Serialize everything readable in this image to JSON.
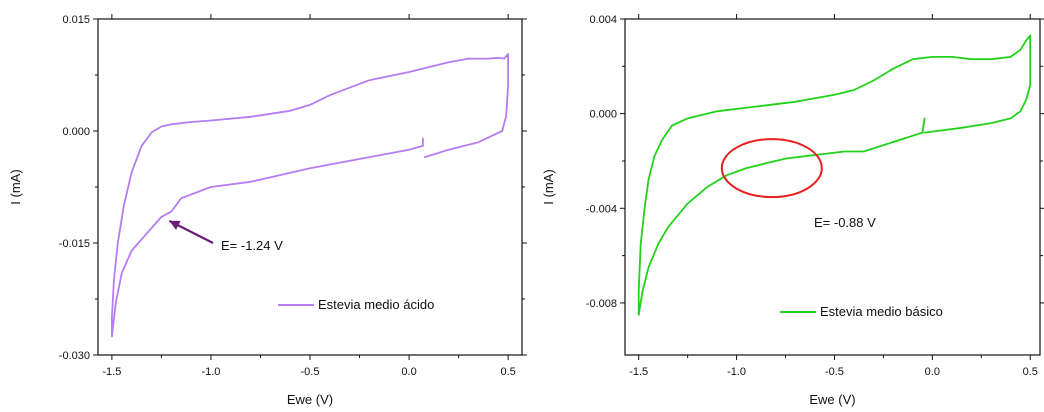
{
  "chart_data": [
    {
      "type": "line",
      "xlabel": "Ewe (V)",
      "ylabel": "I (mA)",
      "xlim": [
        -1.57,
        0.57
      ],
      "ylim": [
        -0.03,
        0.015
      ],
      "xticks": [
        -1.5,
        -1.0,
        -0.5,
        0.0,
        0.5
      ],
      "xtick_labels": [
        "-1.5",
        "-1.0",
        "-0.5",
        "0.0",
        "0.5"
      ],
      "yticks": [
        0.015,
        0.0,
        -0.015,
        -0.03
      ],
      "ytick_labels": [
        "0.015",
        "0.000",
        "-0.015",
        "-0.030"
      ],
      "legend_position": "bottom-right",
      "colors": {
        "series": "#b57cf5",
        "arrow": "#6b1b7a"
      },
      "series": [
        {
          "name": "Estevia medio ácido",
          "x": [
            0.07,
            0.07,
            0.0,
            -0.2,
            -0.5,
            -0.8,
            -1.0,
            -1.15,
            -1.2,
            -1.25,
            -1.3,
            -1.35,
            -1.4,
            -1.45,
            -1.48,
            -1.5,
            -1.5,
            -1.49,
            -1.47,
            -1.44,
            -1.4,
            -1.35,
            -1.3,
            -1.25,
            -1.2,
            -1.1,
            -1.0,
            -0.8,
            -0.6,
            -0.5,
            -0.4,
            -0.2,
            0.0,
            0.2,
            0.3,
            0.4,
            0.45,
            0.48,
            0.5,
            0.5,
            0.49,
            0.47,
            0.43,
            0.35,
            0.2,
            0.08
          ],
          "y": [
            -0.001,
            -0.002,
            -0.0025,
            -0.0035,
            -0.005,
            -0.0068,
            -0.0075,
            -0.009,
            -0.0108,
            -0.0115,
            -0.013,
            -0.0145,
            -0.016,
            -0.019,
            -0.023,
            -0.0275,
            -0.025,
            -0.02,
            -0.015,
            -0.01,
            -0.0055,
            -0.002,
            -0.0002,
            0.0006,
            0.0009,
            0.0012,
            0.0014,
            0.0019,
            0.0027,
            0.0035,
            0.0048,
            0.0068,
            0.0079,
            0.0092,
            0.0097,
            0.0097,
            0.0098,
            0.0097,
            0.0103,
            0.006,
            0.002,
            0.0,
            -0.0005,
            -0.0015,
            -0.0025,
            -0.0035
          ]
        }
      ],
      "annotation": {
        "text": "E= -1.24 V",
        "target_x": -1.24,
        "target_y": -0.0115
      }
    },
    {
      "type": "line",
      "xlabel": "Ewe (V)",
      "ylabel": "I (mA)",
      "xlim": [
        -1.57,
        0.55
      ],
      "ylim": [
        -0.0102,
        0.004
      ],
      "xticks": [
        -1.5,
        -1.0,
        -0.5,
        0.0,
        0.5
      ],
      "xtick_labels": [
        "-1.5",
        "-1.0",
        "-0.5",
        "0.0",
        "0.5"
      ],
      "yticks": [
        0.004,
        0.0,
        -0.004,
        -0.008
      ],
      "ytick_labels": [
        "0.004",
        "0.000",
        "-0.004",
        "-0.008"
      ],
      "legend_position": "bottom-right",
      "colors": {
        "series": "#22d11a",
        "circle": "#e5201f"
      },
      "series": [
        {
          "name": "Estevia medio básico",
          "x": [
            -0.04,
            -0.05,
            -0.2,
            -0.35,
            -0.45,
            -0.55,
            -0.65,
            -0.75,
            -0.85,
            -0.95,
            -1.05,
            -1.15,
            -1.25,
            -1.35,
            -1.4,
            -1.45,
            -1.48,
            -1.5,
            -1.5,
            -1.49,
            -1.47,
            -1.45,
            -1.42,
            -1.38,
            -1.33,
            -1.25,
            -1.1,
            -0.9,
            -0.7,
            -0.5,
            -0.4,
            -0.3,
            -0.2,
            -0.1,
            0.0,
            0.1,
            0.2,
            0.3,
            0.4,
            0.45,
            0.48,
            0.5,
            0.5,
            0.48,
            0.45,
            0.4,
            0.3,
            0.15,
            -0.04
          ],
          "y": [
            -0.0002,
            -0.0008,
            -0.0012,
            -0.0016,
            -0.0016,
            -0.0017,
            -0.0018,
            -0.0019,
            -0.0021,
            -0.0023,
            -0.0026,
            -0.0031,
            -0.0038,
            -0.0048,
            -0.0055,
            -0.0065,
            -0.0075,
            -0.0085,
            -0.0075,
            -0.0055,
            -0.004,
            -0.0028,
            -0.0018,
            -0.0011,
            -0.0005,
            -0.0002,
            0.0001,
            0.0003,
            0.0005,
            0.0008,
            0.001,
            0.0014,
            0.0019,
            0.0023,
            0.0024,
            0.0024,
            0.0023,
            0.0023,
            0.0024,
            0.0027,
            0.0031,
            0.0033,
            0.0012,
            0.0006,
            0.0001,
            -0.0002,
            -0.0004,
            -0.0006,
            -0.0008
          ]
        }
      ],
      "annotation": {
        "text": "E= -0.88 V",
        "target_x": -0.82,
        "target_y": -0.0023
      }
    }
  ]
}
